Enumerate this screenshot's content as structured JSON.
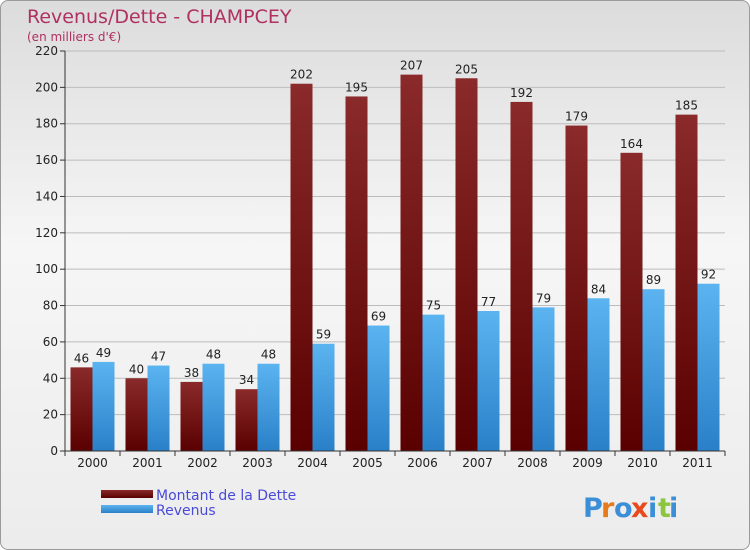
{
  "chart_data": {
    "type": "bar",
    "title": "Revenus/Dette - CHAMPCEY",
    "subtitle": "(en milliers d'€)",
    "xlabel": "",
    "ylabel": "",
    "ylim": [
      0,
      220
    ],
    "yticks": [
      0,
      20,
      40,
      60,
      80,
      100,
      120,
      140,
      160,
      180,
      200,
      220
    ],
    "grid": true,
    "legend_position": "bottom-left",
    "categories": [
      "2000",
      "2001",
      "2002",
      "2003",
      "2004",
      "2005",
      "2006",
      "2007",
      "2008",
      "2009",
      "2010",
      "2011"
    ],
    "series": [
      {
        "name": "Montant de la Dette",
        "color": "#7a1414",
        "values": [
          46,
          40,
          38,
          34,
          202,
          195,
          207,
          205,
          192,
          179,
          164,
          185
        ]
      },
      {
        "name": "Revenus",
        "color": "#4aa3e8",
        "values": [
          49,
          47,
          48,
          48,
          59,
          69,
          75,
          77,
          79,
          84,
          89,
          92
        ]
      }
    ]
  },
  "brand": {
    "letters": [
      "P",
      "r",
      "o",
      "x",
      "i",
      "t",
      "i"
    ],
    "colors": [
      "#3c8fd6",
      "#e87a1e",
      "#3c8fd6",
      "#e84a1e",
      "#3c8fd6",
      "#8cc63f",
      "#3c8fd6"
    ]
  }
}
